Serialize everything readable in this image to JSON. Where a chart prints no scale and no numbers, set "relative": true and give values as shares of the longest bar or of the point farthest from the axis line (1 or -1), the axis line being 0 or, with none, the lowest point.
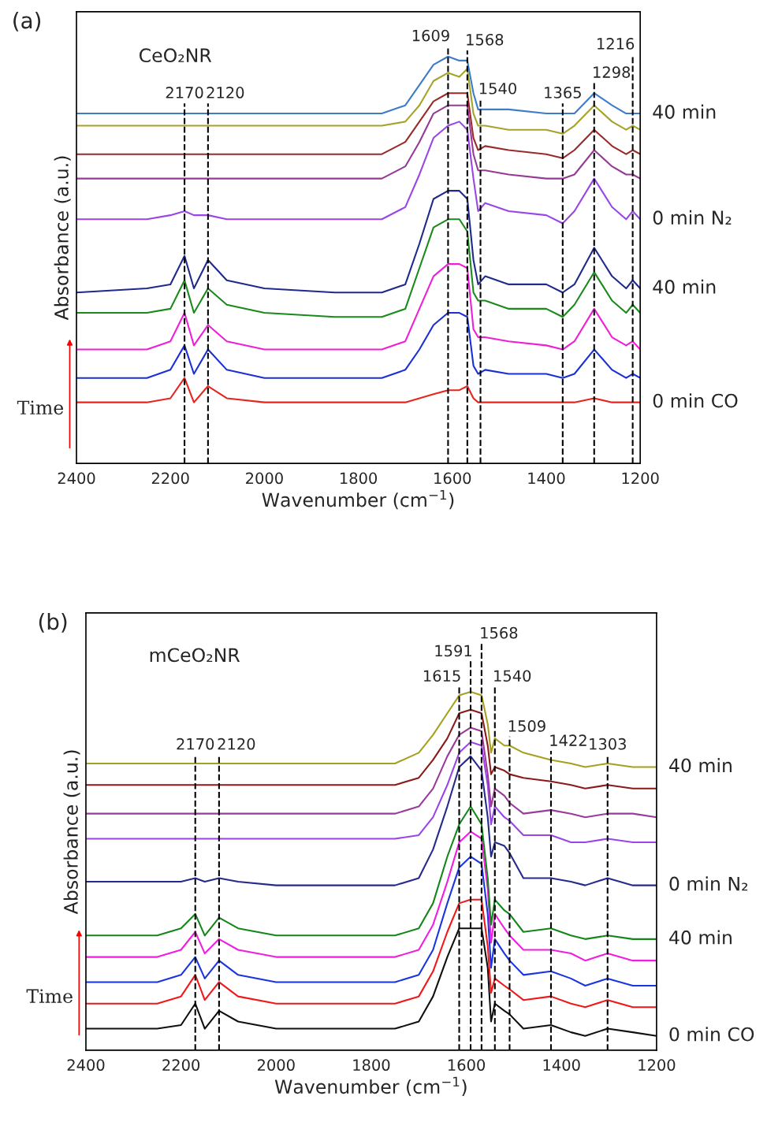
{
  "chart_data": [
    {
      "type": "line",
      "relative": true,
      "title": "(a)",
      "subtitle": "CeO₂NR",
      "xlabel": "Wavenumber (cm$^{−1}$)",
      "ylabel": "Absorbance (a.u.)",
      "xlim": [
        2400,
        1200
      ],
      "xticks": [
        2400,
        2200,
        2000,
        1800,
        1600,
        1400,
        1200
      ],
      "x": [
        2400,
        2250,
        2200,
        2170,
        2150,
        2120,
        2080,
        2000,
        1850,
        1750,
        1700,
        1670,
        1640,
        1609,
        1585,
        1568,
        1555,
        1545,
        1530,
        1480,
        1400,
        1365,
        1340,
        1298,
        1260,
        1230,
        1216,
        1200
      ],
      "series": [
        {
          "name": "0 min CO",
          "color": "#e8241e",
          "values": [
            0.15,
            0.15,
            0.16,
            0.21,
            0.15,
            0.19,
            0.16,
            0.15,
            0.15,
            0.15,
            0.15,
            0.16,
            0.17,
            0.18,
            0.18,
            0.19,
            0.16,
            0.15,
            0.15,
            0.15,
            0.15,
            0.15,
            0.15,
            0.16,
            0.15,
            0.15,
            0.15,
            0.15
          ]
        },
        {
          "color": "#1a2fd6",
          "values": [
            0.21,
            0.21,
            0.23,
            0.29,
            0.22,
            0.28,
            0.23,
            0.21,
            0.21,
            0.21,
            0.23,
            0.28,
            0.34,
            0.37,
            0.37,
            0.36,
            0.24,
            0.22,
            0.23,
            0.22,
            0.22,
            0.21,
            0.22,
            0.28,
            0.23,
            0.21,
            0.22,
            0.21
          ]
        },
        {
          "color": "#ee1fd6",
          "values": [
            0.28,
            0.28,
            0.3,
            0.37,
            0.29,
            0.34,
            0.3,
            0.28,
            0.28,
            0.28,
            0.3,
            0.38,
            0.46,
            0.49,
            0.49,
            0.48,
            0.33,
            0.31,
            0.31,
            0.3,
            0.29,
            0.28,
            0.3,
            0.38,
            0.31,
            0.29,
            0.3,
            0.28
          ]
        },
        {
          "color": "#1a8a1a",
          "values": [
            0.37,
            0.37,
            0.38,
            0.45,
            0.37,
            0.43,
            0.39,
            0.37,
            0.36,
            0.36,
            0.38,
            0.48,
            0.58,
            0.6,
            0.6,
            0.57,
            0.42,
            0.4,
            0.4,
            0.38,
            0.38,
            0.36,
            0.39,
            0.47,
            0.4,
            0.37,
            0.39,
            0.37
          ]
        },
        {
          "name": "40 min",
          "color": "#1e2a8c",
          "values": [
            0.42,
            0.43,
            0.44,
            0.51,
            0.43,
            0.5,
            0.45,
            0.43,
            0.42,
            0.42,
            0.44,
            0.54,
            0.65,
            0.67,
            0.67,
            0.65,
            0.5,
            0.44,
            0.46,
            0.44,
            0.44,
            0.42,
            0.44,
            0.53,
            0.46,
            0.43,
            0.45,
            0.43
          ]
        },
        {
          "name": "0 min N₂",
          "color": "#9a45e6",
          "values": [
            0.6,
            0.6,
            0.61,
            0.62,
            0.61,
            0.61,
            0.6,
            0.6,
            0.6,
            0.6,
            0.63,
            0.71,
            0.8,
            0.83,
            0.84,
            0.82,
            0.7,
            0.62,
            0.64,
            0.62,
            0.61,
            0.59,
            0.62,
            0.7,
            0.63,
            0.6,
            0.62,
            0.6
          ]
        },
        {
          "color": "#963a96",
          "values": [
            0.7,
            0.7,
            0.7,
            0.7,
            0.7,
            0.7,
            0.7,
            0.7,
            0.7,
            0.7,
            0.73,
            0.79,
            0.86,
            0.88,
            0.88,
            0.88,
            0.76,
            0.72,
            0.72,
            0.71,
            0.7,
            0.7,
            0.71,
            0.77,
            0.73,
            0.71,
            0.71,
            0.7
          ]
        },
        {
          "color": "#9b2a2a",
          "values": [
            0.76,
            0.76,
            0.76,
            0.76,
            0.76,
            0.76,
            0.76,
            0.76,
            0.76,
            0.76,
            0.79,
            0.84,
            0.89,
            0.91,
            0.91,
            0.91,
            0.8,
            0.77,
            0.78,
            0.77,
            0.76,
            0.75,
            0.77,
            0.82,
            0.78,
            0.76,
            0.77,
            0.76
          ]
        },
        {
          "color": "#a6a32a",
          "values": [
            0.83,
            0.83,
            0.83,
            0.83,
            0.83,
            0.83,
            0.83,
            0.83,
            0.83,
            0.83,
            0.84,
            0.88,
            0.94,
            0.96,
            0.95,
            0.97,
            0.86,
            0.83,
            0.83,
            0.82,
            0.82,
            0.81,
            0.83,
            0.88,
            0.84,
            0.82,
            0.83,
            0.82
          ]
        },
        {
          "name": "40 min",
          "color": "#3d7cc9",
          "values": [
            0.86,
            0.86,
            0.86,
            0.86,
            0.86,
            0.86,
            0.86,
            0.86,
            0.86,
            0.86,
            0.88,
            0.93,
            0.98,
            1.0,
            0.99,
            0.99,
            0.91,
            0.87,
            0.87,
            0.87,
            0.86,
            0.86,
            0.86,
            0.91,
            0.88,
            0.86,
            0.86,
            0.86
          ]
        }
      ],
      "ref_lines": [
        {
          "axis": "x",
          "value": 2170,
          "label": "2170",
          "line_style": "dashed",
          "color": "#000000"
        },
        {
          "axis": "x",
          "value": 2120,
          "label": "2120",
          "line_style": "dashed",
          "color": "#000000"
        },
        {
          "axis": "x",
          "value": 1609,
          "label": "1609",
          "line_style": "dashed",
          "color": "#000000"
        },
        {
          "axis": "x",
          "value": 1568,
          "label": "1568",
          "line_style": "dashed",
          "color": "#000000"
        },
        {
          "axis": "x",
          "value": 1540,
          "label": "1540",
          "line_style": "dashed",
          "color": "#000000"
        },
        {
          "axis": "x",
          "value": 1365,
          "label": "1365",
          "line_style": "dashed",
          "color": "#000000"
        },
        {
          "axis": "x",
          "value": 1298,
          "label": "1298",
          "line_style": "dashed",
          "color": "#000000"
        },
        {
          "axis": "x",
          "value": 1216,
          "label": "1216",
          "line_style": "dashed",
          "color": "#000000"
        }
      ],
      "annotations": [
        "Time"
      ]
    },
    {
      "type": "line",
      "relative": true,
      "title": "(b)",
      "subtitle": "mCeO₂NR",
      "xlabel": "Wavenumber (cm$^{−1}$)",
      "ylabel": "Absorbance (a.u.)",
      "xlim": [
        2400,
        1200
      ],
      "xticks": [
        2400,
        2200,
        2000,
        1800,
        1600,
        1400,
        1200
      ],
      "x": [
        2400,
        2250,
        2200,
        2170,
        2150,
        2120,
        2080,
        2000,
        1850,
        1750,
        1700,
        1670,
        1640,
        1615,
        1591,
        1568,
        1555,
        1548,
        1540,
        1520,
        1509,
        1480,
        1422,
        1380,
        1350,
        1303,
        1250,
        1200
      ],
      "series": [
        {
          "name": "0 min CO",
          "color": "#101010",
          "values": [
            0.06,
            0.06,
            0.07,
            0.13,
            0.06,
            0.11,
            0.08,
            0.06,
            0.06,
            0.06,
            0.08,
            0.15,
            0.26,
            0.34,
            0.34,
            0.34,
            0.23,
            0.08,
            0.13,
            0.11,
            0.1,
            0.06,
            0.07,
            0.05,
            0.04,
            0.06,
            0.05,
            0.04
          ]
        },
        {
          "color": "#f01818",
          "values": [
            0.13,
            0.13,
            0.15,
            0.21,
            0.14,
            0.19,
            0.15,
            0.13,
            0.13,
            0.13,
            0.15,
            0.22,
            0.33,
            0.41,
            0.42,
            0.42,
            0.29,
            0.16,
            0.2,
            0.18,
            0.17,
            0.14,
            0.15,
            0.13,
            0.12,
            0.14,
            0.12,
            0.12
          ]
        },
        {
          "color": "#1a35e0",
          "values": [
            0.19,
            0.19,
            0.21,
            0.26,
            0.2,
            0.25,
            0.21,
            0.19,
            0.19,
            0.19,
            0.21,
            0.28,
            0.41,
            0.51,
            0.54,
            0.52,
            0.38,
            0.23,
            0.31,
            0.27,
            0.25,
            0.21,
            0.22,
            0.2,
            0.18,
            0.2,
            0.18,
            0.18
          ]
        },
        {
          "color": "#f01ee0",
          "values": [
            0.26,
            0.26,
            0.28,
            0.33,
            0.27,
            0.31,
            0.28,
            0.26,
            0.26,
            0.26,
            0.28,
            0.35,
            0.47,
            0.58,
            0.61,
            0.59,
            0.45,
            0.3,
            0.38,
            0.34,
            0.32,
            0.28,
            0.28,
            0.27,
            0.25,
            0.27,
            0.25,
            0.25
          ]
        },
        {
          "name": "40 min",
          "color": "#14861a",
          "values": [
            0.32,
            0.32,
            0.34,
            0.38,
            0.32,
            0.37,
            0.34,
            0.32,
            0.32,
            0.32,
            0.34,
            0.41,
            0.54,
            0.63,
            0.68,
            0.63,
            0.48,
            0.35,
            0.42,
            0.39,
            0.38,
            0.33,
            0.34,
            0.32,
            0.31,
            0.32,
            0.31,
            0.31
          ]
        },
        {
          "name": "0 min N₂",
          "color": "#262a8a",
          "values": [
            0.47,
            0.47,
            0.47,
            0.48,
            0.47,
            0.48,
            0.47,
            0.46,
            0.46,
            0.46,
            0.48,
            0.56,
            0.68,
            0.79,
            0.82,
            0.78,
            0.65,
            0.54,
            0.58,
            0.57,
            0.55,
            0.48,
            0.48,
            0.47,
            0.46,
            0.48,
            0.46,
            0.46
          ]
        },
        {
          "color": "#9a45e6",
          "values": [
            0.59,
            0.59,
            0.59,
            0.59,
            0.59,
            0.59,
            0.59,
            0.59,
            0.59,
            0.59,
            0.6,
            0.65,
            0.74,
            0.83,
            0.86,
            0.85,
            0.74,
            0.63,
            0.68,
            0.65,
            0.64,
            0.6,
            0.6,
            0.58,
            0.58,
            0.59,
            0.58,
            0.58
          ]
        },
        {
          "color": "#9a3a9a",
          "values": [
            0.66,
            0.66,
            0.66,
            0.66,
            0.66,
            0.66,
            0.66,
            0.66,
            0.66,
            0.66,
            0.68,
            0.73,
            0.82,
            0.88,
            0.9,
            0.89,
            0.77,
            0.68,
            0.73,
            0.71,
            0.69,
            0.66,
            0.67,
            0.66,
            0.65,
            0.66,
            0.66,
            0.65
          ]
        },
        {
          "color": "#8b1a1a",
          "values": [
            0.74,
            0.74,
            0.74,
            0.74,
            0.74,
            0.74,
            0.74,
            0.74,
            0.74,
            0.74,
            0.76,
            0.81,
            0.87,
            0.94,
            0.95,
            0.94,
            0.85,
            0.77,
            0.79,
            0.78,
            0.77,
            0.76,
            0.75,
            0.74,
            0.73,
            0.74,
            0.73,
            0.73
          ]
        },
        {
          "name": "40 min",
          "color": "#a5a020",
          "values": [
            0.8,
            0.8,
            0.8,
            0.8,
            0.8,
            0.8,
            0.8,
            0.8,
            0.8,
            0.8,
            0.83,
            0.88,
            0.94,
            0.99,
            1.0,
            0.99,
            0.91,
            0.83,
            0.87,
            0.85,
            0.85,
            0.83,
            0.81,
            0.8,
            0.79,
            0.8,
            0.79,
            0.79
          ]
        }
      ],
      "ref_lines": [
        {
          "axis": "x",
          "value": 2170,
          "label": "2170",
          "line_style": "dashed",
          "color": "#000000"
        },
        {
          "axis": "x",
          "value": 2120,
          "label": "2120",
          "line_style": "dashed",
          "color": "#000000"
        },
        {
          "axis": "x",
          "value": 1615,
          "label": "1615",
          "line_style": "dashed",
          "color": "#000000"
        },
        {
          "axis": "x",
          "value": 1591,
          "label": "1591",
          "line_style": "dashed",
          "color": "#000000"
        },
        {
          "axis": "x",
          "value": 1568,
          "label": "1568",
          "line_style": "dashed",
          "color": "#000000"
        },
        {
          "axis": "x",
          "value": 1540,
          "label": "1540",
          "line_style": "dashed",
          "color": "#000000"
        },
        {
          "axis": "x",
          "value": 1509,
          "label": "1509",
          "line_style": "dashed",
          "color": "#000000"
        },
        {
          "axis": "x",
          "value": 1422,
          "label": "1422",
          "line_style": "dashed",
          "color": "#000000"
        },
        {
          "axis": "x",
          "value": 1303,
          "label": "1303",
          "line_style": "dashed",
          "color": "#000000"
        }
      ],
      "annotations": [
        "Time"
      ]
    }
  ]
}
